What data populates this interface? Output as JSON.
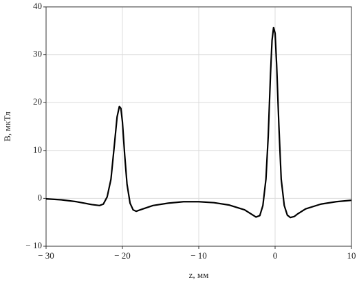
{
  "chart_data": {
    "type": "line",
    "x_label": "z, мм",
    "y_label": "B, мкТл",
    "xlim": [
      -30,
      10
    ],
    "ylim": [
      -10,
      40
    ],
    "xticks": [
      {
        "value": -30,
        "label": "− 30"
      },
      {
        "value": -20,
        "label": "− 20"
      },
      {
        "value": -10,
        "label": "− 10"
      },
      0,
      10
    ],
    "yticks": [
      {
        "value": -10,
        "label": "− 10"
      },
      0,
      10,
      20,
      30,
      40
    ],
    "grid": true,
    "series": [
      {
        "color": "#000000",
        "x": [
          -30,
          -28,
          -26,
          -24,
          -23,
          -22.5,
          -22,
          -21.5,
          -21,
          -20.7,
          -20.4,
          -20.2,
          -20,
          -19.7,
          -19.4,
          -19,
          -18.6,
          -18.2,
          -17.5,
          -16,
          -14,
          -12,
          -10,
          -8,
          -6,
          -4,
          -3,
          -2.5,
          -2,
          -1.6,
          -1.2,
          -0.9,
          -0.6,
          -0.4,
          -0.2,
          0,
          0.2,
          0.5,
          0.8,
          1.2,
          1.6,
          2,
          2.5,
          3,
          4,
          6,
          8,
          10
        ],
        "values": [
          -0.1,
          -0.3,
          -0.7,
          -1.3,
          -1.5,
          -1.2,
          0.3,
          4,
          12,
          17,
          19.2,
          18.8,
          16,
          9,
          3,
          -1,
          -2.4,
          -2.7,
          -2.3,
          -1.5,
          -1,
          -0.7,
          -0.7,
          -0.9,
          -1.4,
          -2.4,
          -3.4,
          -3.9,
          -3.6,
          -1.5,
          4,
          13,
          26,
          33,
          35.7,
          34.5,
          28,
          15,
          4,
          -1.5,
          -3.5,
          -4,
          -3.8,
          -3.2,
          -2.2,
          -1.2,
          -0.7,
          -0.4
        ]
      }
    ]
  }
}
